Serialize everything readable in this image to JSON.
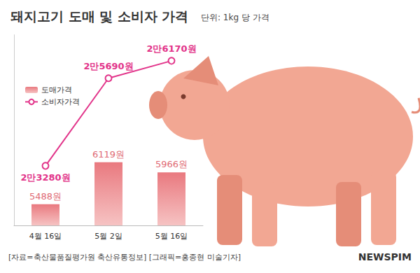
{
  "chart_data": {
    "type": "bar",
    "title": "돼지고기 도매 및 소비자 가격",
    "subtitle": "단위: 1kg 당 가격",
    "categories": [
      "4월 16일",
      "5월 2일",
      "5월 16일"
    ],
    "series": [
      {
        "name": "도매가격",
        "type": "bar",
        "color": "#e9797f",
        "values": [
          5488,
          6119,
          5966
        ],
        "value_labels": [
          "5488원",
          "6119원",
          "5966원"
        ]
      },
      {
        "name": "소비자가격",
        "type": "line",
        "color": "#e2348a",
        "marker": "circle",
        "axis": "y2",
        "values": [
          23280,
          25690,
          26170
        ],
        "value_labels": [
          "2만3280원",
          "2만5690원",
          "2만6170원"
        ]
      }
    ],
    "ylim": [
      5170,
      8030
    ],
    "y2lim": [
      21640,
      26880
    ],
    "data_labels": true,
    "tick_labels": "x",
    "grid": false,
    "legend": "upper left",
    "annotations": [
      "[자료=축산물품질평가원 축산유통정보] [그래픽=홍종현 미술기자]",
      "NEWSPIM"
    ]
  }
}
